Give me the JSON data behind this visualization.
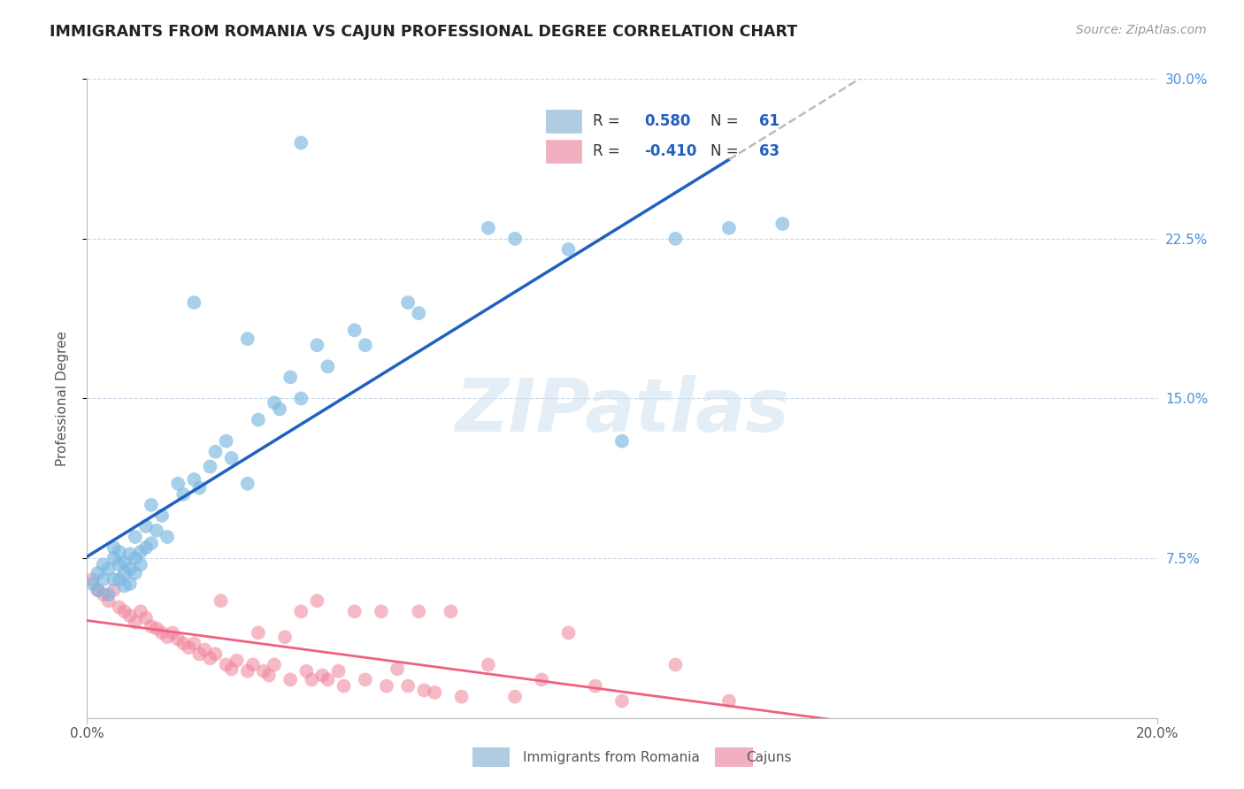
{
  "title": "IMMIGRANTS FROM ROMANIA VS CAJUN PROFESSIONAL DEGREE CORRELATION CHART",
  "source": "Source: ZipAtlas.com",
  "ylabel": "Professional Degree",
  "romania_color": "#7ab8e0",
  "cajun_color": "#f0829a",
  "trendline_romania_color": "#2060c0",
  "trendline_cajun_color": "#f06080",
  "dashed_color": "#bbbbbb",
  "watermark": "ZIPatlas",
  "background_color": "#ffffff",
  "grid_color": "#c8d8e8",
  "romania_scatter": [
    [
      0.001,
      0.063
    ],
    [
      0.002,
      0.068
    ],
    [
      0.002,
      0.06
    ],
    [
      0.003,
      0.072
    ],
    [
      0.003,
      0.065
    ],
    [
      0.004,
      0.07
    ],
    [
      0.004,
      0.058
    ],
    [
      0.005,
      0.08
    ],
    [
      0.005,
      0.075
    ],
    [
      0.005,
      0.065
    ],
    [
      0.006,
      0.078
    ],
    [
      0.006,
      0.072
    ],
    [
      0.006,
      0.065
    ],
    [
      0.007,
      0.073
    ],
    [
      0.007,
      0.068
    ],
    [
      0.007,
      0.062
    ],
    [
      0.008,
      0.077
    ],
    [
      0.008,
      0.07
    ],
    [
      0.008,
      0.063
    ],
    [
      0.009,
      0.085
    ],
    [
      0.009,
      0.075
    ],
    [
      0.009,
      0.068
    ],
    [
      0.01,
      0.078
    ],
    [
      0.01,
      0.072
    ],
    [
      0.011,
      0.09
    ],
    [
      0.011,
      0.08
    ],
    [
      0.012,
      0.1
    ],
    [
      0.012,
      0.082
    ],
    [
      0.013,
      0.088
    ],
    [
      0.014,
      0.095
    ],
    [
      0.015,
      0.085
    ],
    [
      0.017,
      0.11
    ],
    [
      0.018,
      0.105
    ],
    [
      0.02,
      0.112
    ],
    [
      0.021,
      0.108
    ],
    [
      0.023,
      0.118
    ],
    [
      0.024,
      0.125
    ],
    [
      0.026,
      0.13
    ],
    [
      0.027,
      0.122
    ],
    [
      0.03,
      0.11
    ],
    [
      0.032,
      0.14
    ],
    [
      0.035,
      0.148
    ],
    [
      0.036,
      0.145
    ],
    [
      0.038,
      0.16
    ],
    [
      0.04,
      0.15
    ],
    [
      0.043,
      0.175
    ],
    [
      0.045,
      0.165
    ],
    [
      0.05,
      0.182
    ],
    [
      0.052,
      0.175
    ],
    [
      0.06,
      0.195
    ],
    [
      0.062,
      0.19
    ],
    [
      0.04,
      0.27
    ],
    [
      0.02,
      0.195
    ],
    [
      0.03,
      0.178
    ],
    [
      0.075,
      0.23
    ],
    [
      0.08,
      0.225
    ],
    [
      0.09,
      0.22
    ],
    [
      0.1,
      0.13
    ],
    [
      0.11,
      0.225
    ],
    [
      0.12,
      0.23
    ],
    [
      0.13,
      0.232
    ]
  ],
  "cajun_scatter": [
    [
      0.001,
      0.065
    ],
    [
      0.002,
      0.06
    ],
    [
      0.003,
      0.058
    ],
    [
      0.004,
      0.055
    ],
    [
      0.005,
      0.06
    ],
    [
      0.006,
      0.052
    ],
    [
      0.007,
      0.05
    ],
    [
      0.008,
      0.048
    ],
    [
      0.009,
      0.045
    ],
    [
      0.01,
      0.05
    ],
    [
      0.011,
      0.047
    ],
    [
      0.012,
      0.043
    ],
    [
      0.013,
      0.042
    ],
    [
      0.014,
      0.04
    ],
    [
      0.015,
      0.038
    ],
    [
      0.016,
      0.04
    ],
    [
      0.017,
      0.037
    ],
    [
      0.018,
      0.035
    ],
    [
      0.019,
      0.033
    ],
    [
      0.02,
      0.035
    ],
    [
      0.021,
      0.03
    ],
    [
      0.022,
      0.032
    ],
    [
      0.023,
      0.028
    ],
    [
      0.024,
      0.03
    ],
    [
      0.025,
      0.055
    ],
    [
      0.026,
      0.025
    ],
    [
      0.027,
      0.023
    ],
    [
      0.028,
      0.027
    ],
    [
      0.03,
      0.022
    ],
    [
      0.031,
      0.025
    ],
    [
      0.032,
      0.04
    ],
    [
      0.033,
      0.022
    ],
    [
      0.034,
      0.02
    ],
    [
      0.035,
      0.025
    ],
    [
      0.037,
      0.038
    ],
    [
      0.038,
      0.018
    ],
    [
      0.04,
      0.05
    ],
    [
      0.041,
      0.022
    ],
    [
      0.042,
      0.018
    ],
    [
      0.043,
      0.055
    ],
    [
      0.044,
      0.02
    ],
    [
      0.045,
      0.018
    ],
    [
      0.047,
      0.022
    ],
    [
      0.048,
      0.015
    ],
    [
      0.05,
      0.05
    ],
    [
      0.052,
      0.018
    ],
    [
      0.055,
      0.05
    ],
    [
      0.056,
      0.015
    ],
    [
      0.058,
      0.023
    ],
    [
      0.06,
      0.015
    ],
    [
      0.062,
      0.05
    ],
    [
      0.063,
      0.013
    ],
    [
      0.065,
      0.012
    ],
    [
      0.068,
      0.05
    ],
    [
      0.07,
      0.01
    ],
    [
      0.075,
      0.025
    ],
    [
      0.08,
      0.01
    ],
    [
      0.085,
      0.018
    ],
    [
      0.09,
      0.04
    ],
    [
      0.095,
      0.015
    ],
    [
      0.1,
      0.008
    ],
    [
      0.11,
      0.025
    ],
    [
      0.12,
      0.008
    ]
  ],
  "xlim": [
    0.0,
    0.2
  ],
  "ylim": [
    0.0,
    0.3
  ],
  "trend_solid_end": 0.12,
  "figsize": [
    14.06,
    8.92
  ],
  "dpi": 100
}
